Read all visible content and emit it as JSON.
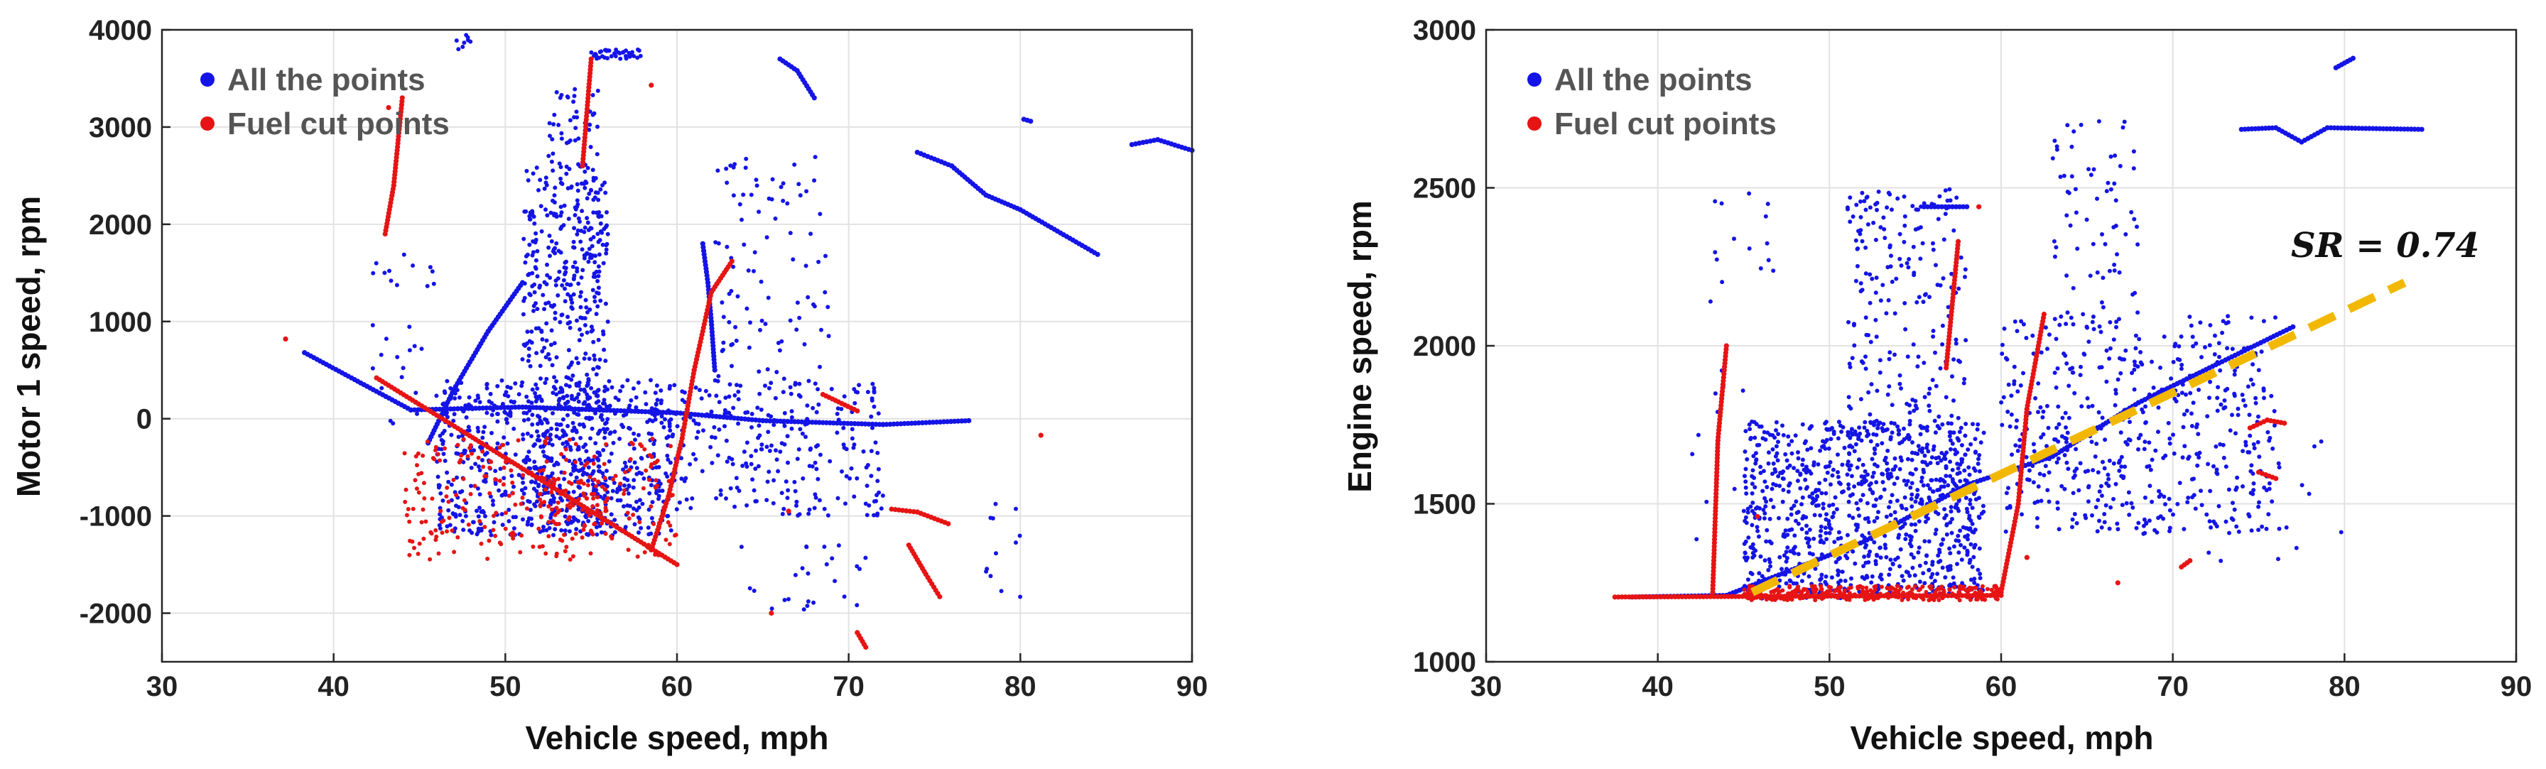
{
  "chart_data": [
    {
      "type": "scatter",
      "xlabel": "Vehicle speed, mph",
      "ylabel": "Motor 1 speed, rpm",
      "xlim": [
        30,
        90
      ],
      "ylim": [
        -2500,
        4000
      ],
      "xticks": [
        30,
        40,
        50,
        60,
        70,
        80,
        90
      ],
      "yticks": [
        -2000,
        -1000,
        0,
        1000,
        2000,
        3000,
        4000
      ],
      "grid": true,
      "legend_position": "top-left",
      "series": [
        {
          "name": "All the points",
          "color": "#1414e6",
          "lines": [
            [
              [
                38.3,
                680
              ],
              [
                44.5,
                90
              ]
            ],
            [
              [
                44.5,
                90
              ],
              [
                51,
                120
              ],
              [
                60,
                60
              ],
              [
                65,
                -20
              ],
              [
                72,
                -60
              ],
              [
                77,
                -20
              ]
            ],
            [
              [
                74,
                2740
              ],
              [
                76,
                2600
              ],
              [
                78,
                2300
              ],
              [
                80,
                2150
              ],
              [
                84.5,
                1690
              ]
            ],
            [
              [
                86.5,
                2820
              ],
              [
                88,
                2870
              ],
              [
                90,
                2760
              ]
            ],
            [
              [
                45.5,
                -250
              ],
              [
                47,
                300
              ],
              [
                49,
                900
              ],
              [
                51,
                1400
              ]
            ],
            [
              [
                61.5,
                1800
              ],
              [
                61.8,
                1400
              ],
              [
                62,
                1000
              ],
              [
                62.2,
                500
              ]
            ],
            [
              [
                66,
                3700
              ],
              [
                67,
                3580
              ],
              [
                68,
                3300
              ]
            ],
            [
              [
                80.2,
                3080
              ],
              [
                80.6,
                3060
              ]
            ]
          ],
          "clusters": [
            {
              "x": [
                46,
                60
              ],
              "y": [
                -1200,
                400
              ],
              "n": 700
            },
            {
              "x": [
                51,
                56
              ],
              "y": [
                -1100,
                2600
              ],
              "n": 450
            },
            {
              "x": [
                52.5,
                55.5
              ],
              "y": [
                800,
                3400
              ],
              "n": 120
            },
            {
              "x": [
                60,
                72
              ],
              "y": [
                -1000,
                400
              ],
              "n": 260
            },
            {
              "x": [
                62,
                69
              ],
              "y": [
                400,
                2700
              ],
              "n": 90
            },
            {
              "x": [
                42,
                46
              ],
              "y": [
                -100,
                1700
              ],
              "n": 30
            },
            {
              "x": [
                55,
                58
              ],
              "y": [
                3700,
                3800
              ],
              "n": 40
            },
            {
              "x": [
                63,
                71
              ],
              "y": [
                -2000,
                -1300
              ],
              "n": 25
            },
            {
              "x": [
                78,
                80
              ],
              "y": [
                -1900,
                -700
              ],
              "n": 12
            },
            {
              "x": [
                47,
                48
              ],
              "y": [
                3800,
                3950
              ],
              "n": 8
            }
          ]
        },
        {
          "name": "Fuel cut points",
          "color": "#e61414",
          "lines": [
            [
              [
                42.5,
                420
              ],
              [
                60,
                -1500
              ]
            ],
            [
              [
                58.5,
                -1350
              ],
              [
                59.5,
                -800
              ],
              [
                60.3,
                -200
              ],
              [
                61,
                500
              ],
              [
                62,
                1300
              ],
              [
                63.2,
                1620
              ]
            ],
            [
              [
                43,
                1900
              ],
              [
                43.5,
                2400
              ],
              [
                44,
                3300
              ]
            ],
            [
              [
                72.5,
                -930
              ],
              [
                74,
                -960
              ],
              [
                75.8,
                -1080
              ]
            ],
            [
              [
                73.5,
                -1300
              ],
              [
                74.5,
                -1600
              ],
              [
                75.3,
                -1830
              ]
            ],
            [
              [
                68.5,
                250
              ],
              [
                70.5,
                80
              ]
            ],
            [
              [
                70.5,
                -2200
              ],
              [
                71,
                -2350
              ]
            ],
            [
              [
                54.5,
                2600
              ],
              [
                55,
                3700
              ]
            ]
          ],
          "clusters": [
            {
              "x": [
                44,
                60
              ],
              "y": [
                -1450,
                -200
              ],
              "n": 260
            },
            {
              "x": [
                52,
                56
              ],
              "y": [
                -1100,
                -600
              ],
              "n": 60
            }
          ],
          "points": [
            [
              37.2,
              820
            ],
            [
              58.5,
              3430
            ],
            [
              81.2,
              -170
            ],
            [
              43.2,
              3200
            ],
            [
              65.5,
              -2000
            ],
            [
              66.5,
              -950
            ]
          ]
        }
      ]
    },
    {
      "type": "scatter",
      "xlabel": "Vehicle speed, mph",
      "ylabel": "Engine speed, rpm",
      "xlim": [
        30,
        90
      ],
      "ylim": [
        1000,
        3000
      ],
      "xticks": [
        30,
        40,
        50,
        60,
        70,
        80,
        90
      ],
      "yticks": [
        1000,
        1500,
        2000,
        2500,
        3000
      ],
      "grid": true,
      "legend_position": "top-left",
      "annotation": "SR = 0.74",
      "series": [
        {
          "name": "All the points",
          "color": "#1414e6",
          "lines": [
            [
              [
                38.5,
                1205
              ],
              [
                44,
                1210
              ]
            ],
            [
              [
                44,
                1210
              ],
              [
                52,
                1380
              ],
              [
                58,
                1560
              ],
              [
                63,
                1650
              ],
              [
                68,
                1820
              ],
              [
                74,
                1980
              ],
              [
                77,
                2060
              ]
            ],
            [
              [
                74,
                2685
              ],
              [
                76,
                2690
              ],
              [
                77.5,
                2645
              ],
              [
                79,
                2690
              ],
              [
                84.5,
                2685
              ]
            ],
            [
              [
                79.5,
                2880
              ],
              [
                80.5,
                2910
              ]
            ],
            [
              [
                58,
                2440
              ],
              [
                55.5,
                2440
              ]
            ]
          ],
          "clusters": [
            {
              "x": [
                45,
                59
              ],
              "y": [
                1200,
                1760
              ],
              "n": 900
            },
            {
              "x": [
                51,
                58
              ],
              "y": [
                1500,
                2500
              ],
              "n": 280
            },
            {
              "x": [
                60,
                76
              ],
              "y": [
                1400,
                2100
              ],
              "n": 500
            },
            {
              "x": [
                63,
                68
              ],
              "y": [
                2000,
                2720
              ],
              "n": 70
            },
            {
              "x": [
                42,
                47
              ],
              "y": [
                1300,
                2500
              ],
              "n": 30
            },
            {
              "x": [
                70,
                80
              ],
              "y": [
                1300,
                1700
              ],
              "n": 20
            }
          ]
        },
        {
          "name": "Fuel cut points",
          "color": "#e61414",
          "lines": [
            [
              [
                37.5,
                1205
              ],
              [
                60,
                1210
              ]
            ],
            [
              [
                60,
                1220
              ],
              [
                61,
                1500
              ],
              [
                61.5,
                1800
              ],
              [
                62.5,
                2100
              ]
            ],
            [
              [
                43.2,
                1220
              ],
              [
                43.5,
                1700
              ],
              [
                44,
                2000
              ]
            ],
            [
              [
                74.5,
                1740
              ],
              [
                75.5,
                1765
              ],
              [
                76.5,
                1755
              ]
            ],
            [
              [
                75,
                1600
              ],
              [
                76,
                1580
              ]
            ],
            [
              [
                56.8,
                1930
              ],
              [
                57.5,
                2330
              ]
            ],
            [
              [
                70.5,
                1300
              ],
              [
                71,
                1320
              ]
            ]
          ],
          "clusters": [
            {
              "x": [
                45,
                60
              ],
              "y": [
                1195,
                1240
              ],
              "n": 300
            }
          ],
          "points": [
            [
              45.8,
              1460
            ],
            [
              58.7,
              2440
            ],
            [
              66.8,
              1250
            ],
            [
              61.5,
              1330
            ]
          ]
        },
        {
          "name": "",
          "color": "#f2b800",
          "dashed": true,
          "lines": [
            [
              [
                45.5,
                1220
              ],
              [
                83.5,
                2200
              ]
            ]
          ]
        }
      ]
    }
  ]
}
